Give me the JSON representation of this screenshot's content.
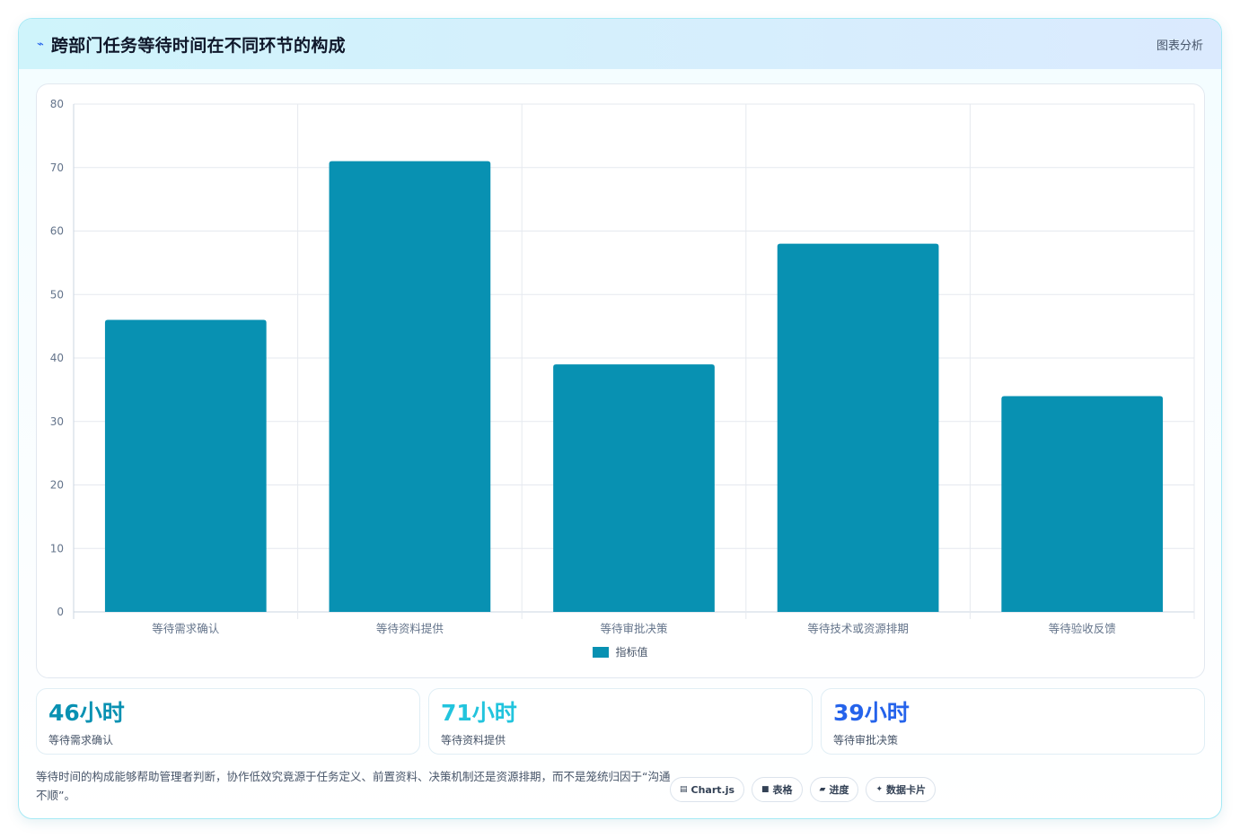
{
  "header": {
    "icon": "chart-spark-icon",
    "icon_glyph": "⌁",
    "title": "跨部门任务等待时间在不同环节的构成",
    "tag": "图表分析"
  },
  "chart_data": {
    "type": "bar",
    "categories": [
      "等待需求确认",
      "等待资料提供",
      "等待审批决策",
      "等待技术或资源排期",
      "等待验收反馈"
    ],
    "series": [
      {
        "name": "指标值",
        "values": [
          46,
          71,
          39,
          58,
          34
        ],
        "color": "#0891b2"
      }
    ],
    "ylim": [
      0,
      80
    ],
    "yticks": [
      0,
      10,
      20,
      30,
      40,
      50,
      60,
      70,
      80
    ],
    "grid": true,
    "legend_position": "bottom"
  },
  "stats": [
    {
      "value": "46小时",
      "label": "等待需求确认",
      "color": "#0891b2"
    },
    {
      "value": "71小时",
      "label": "等待资料提供",
      "color": "#22c4dd"
    },
    {
      "value": "39小时",
      "label": "等待审批决策",
      "color": "#2563eb"
    }
  ],
  "footer": {
    "note": "等待时间的构成能够帮助管理者判断，协作低效究竟源于任务定义、前置资料、决策机制还是资源排期，而不是笼统归因于“沟通不顺”。",
    "chips": [
      {
        "icon": "chart-icon",
        "glyph": "▤",
        "label": "Chart.js"
      },
      {
        "icon": "table-icon",
        "glyph": "■",
        "label": "表格"
      },
      {
        "icon": "progress-icon",
        "glyph": "▰",
        "label": "进度"
      },
      {
        "icon": "sparkle-icon",
        "glyph": "✦",
        "label": "数据卡片"
      }
    ]
  }
}
